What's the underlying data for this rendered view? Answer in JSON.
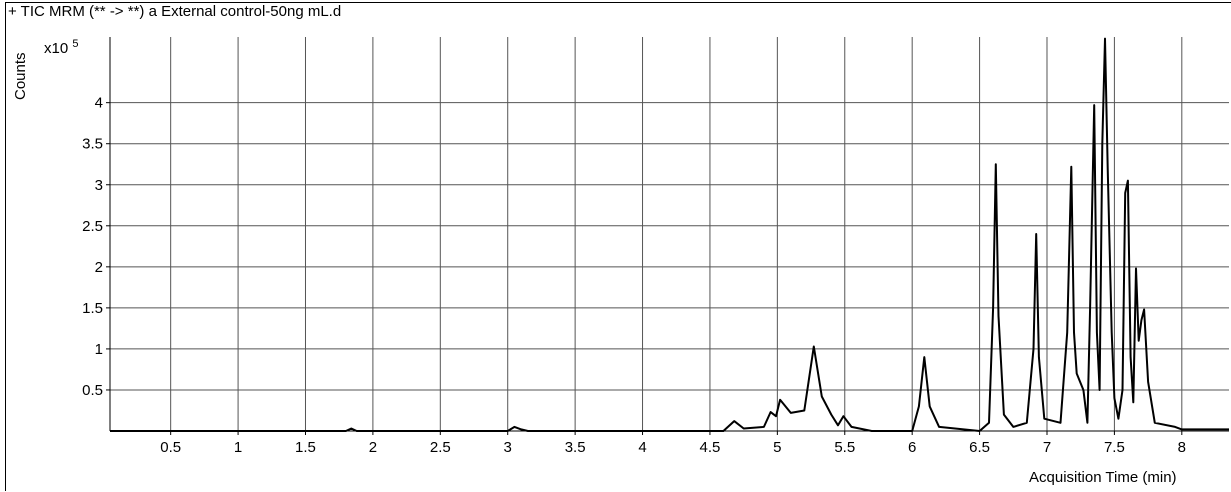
{
  "header": {
    "title": "+ TIC MRM (** -> **) a External control-50ng mL.d"
  },
  "chart_data": {
    "type": "line",
    "title": "+ TIC MRM (** -> **) a External control-50ng mL.d",
    "xlabel": "Acquisition Time (min)",
    "ylabel": "Counts",
    "y_scale_label": "x10",
    "y_scale_exponent": "5",
    "xlim": [
      0.05,
      8.35
    ],
    "ylim": [
      0,
      4.8
    ],
    "x_ticks": [
      0.5,
      1,
      1.5,
      2,
      2.5,
      3,
      3.5,
      4,
      4.5,
      5,
      5.5,
      6,
      6.5,
      7,
      7.5,
      8
    ],
    "y_ticks": [
      0.5,
      1,
      1.5,
      2,
      2.5,
      3,
      3.5,
      4
    ],
    "x_tick_labels": [
      "0.5",
      "1",
      "1.5",
      "2",
      "2.5",
      "3",
      "3.5",
      "4",
      "4.5",
      "5",
      "5.5",
      "6",
      "6.5",
      "7",
      "7.5",
      "8"
    ],
    "y_tick_labels": [
      "0.5",
      "1",
      "1.5",
      "2",
      "2.5",
      "3",
      "3.5",
      "4"
    ],
    "grid": true,
    "line_color": "#000000",
    "series": [
      {
        "x": [
          0.05,
          1.8,
          1.84,
          1.88,
          3.0,
          3.05,
          3.1,
          3.15,
          4.6,
          4.68,
          4.75,
          4.9,
          4.95,
          4.99,
          5.02,
          5.1,
          5.2,
          5.27,
          5.33,
          5.4,
          5.45,
          5.49,
          5.55,
          5.7,
          6.0,
          6.05,
          6.09,
          6.13,
          6.2,
          6.5,
          6.57,
          6.6,
          6.62,
          6.64,
          6.68,
          6.75,
          6.85,
          6.9,
          6.92,
          6.94,
          6.98,
          7.1,
          7.15,
          7.18,
          7.2,
          7.22,
          7.27,
          7.3,
          7.32,
          7.35,
          7.37,
          7.39,
          7.41,
          7.43,
          7.45,
          7.48,
          7.5,
          7.53,
          7.56,
          7.58,
          7.6,
          7.62,
          7.64,
          7.66,
          7.68,
          7.7,
          7.72,
          7.75,
          7.8,
          7.95,
          8.0,
          8.35
        ],
        "y": [
          0,
          0,
          0.03,
          0,
          0,
          0.05,
          0.02,
          0,
          0,
          0.12,
          0.03,
          0.05,
          0.23,
          0.18,
          0.38,
          0.22,
          0.25,
          1.03,
          0.42,
          0.2,
          0.07,
          0.18,
          0.05,
          0,
          0,
          0.3,
          0.9,
          0.3,
          0.05,
          0,
          0.1,
          1.5,
          3.25,
          1.4,
          0.2,
          0.05,
          0.1,
          1.0,
          2.4,
          0.9,
          0.15,
          0.1,
          1.2,
          3.22,
          1.2,
          0.7,
          0.5,
          0.1,
          1.5,
          3.97,
          1.2,
          0.5,
          3.5,
          4.78,
          3.2,
          1.2,
          0.4,
          0.15,
          0.5,
          2.9,
          3.05,
          0.9,
          0.35,
          1.98,
          1.1,
          1.35,
          1.48,
          0.6,
          0.1,
          0.05,
          0.02,
          0.02
        ]
      }
    ]
  }
}
